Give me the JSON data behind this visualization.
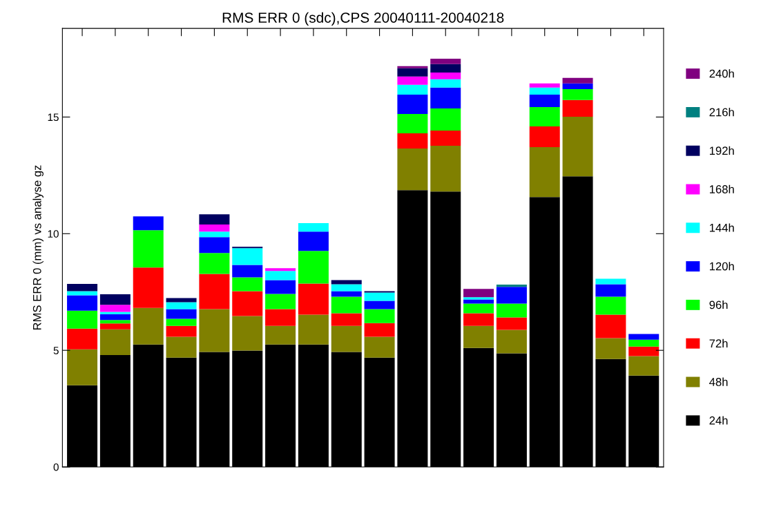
{
  "chart_data": {
    "type": "bar",
    "stacked": true,
    "title": "RMS ERR 0 (sdc),CPS 20040111-20040218",
    "ylabel": "RMS ERR 0 (mm) vs analyse gz",
    "categories": [
      null,
      null,
      null,
      null,
      null,
      null,
      null,
      null,
      null,
      null,
      null,
      null,
      null,
      null,
      null,
      null,
      null,
      null
    ],
    "ylim": [
      0,
      18.8
    ],
    "yticks": [
      0,
      5,
      10,
      15
    ],
    "grid": false,
    "legend": "right",
    "series": [
      {
        "name": "24h",
        "color": "#000000",
        "values": [
          3.5,
          4.8,
          5.25,
          4.69,
          4.93,
          4.99,
          5.25,
          5.25,
          4.93,
          4.69,
          11.87,
          11.81,
          5.1,
          4.87,
          11.57,
          12.46,
          4.63,
          3.92
        ]
      },
      {
        "name": "48h",
        "color": "#808000",
        "values": [
          1.54,
          1.1,
          1.57,
          0.89,
          1.84,
          1.48,
          0.8,
          1.28,
          1.12,
          0.89,
          1.78,
          1.96,
          0.95,
          1.01,
          2.14,
          2.55,
          0.89,
          0.83
        ]
      },
      {
        "name": "72h",
        "color": "#ff0000",
        "values": [
          0.89,
          0.25,
          1.73,
          0.47,
          1.51,
          1.07,
          0.72,
          1.33,
          0.54,
          0.59,
          0.65,
          0.65,
          0.54,
          0.53,
          0.89,
          0.72,
          1.01,
          0.41
        ]
      },
      {
        "name": "96h",
        "color": "#00ff00",
        "values": [
          0.77,
          0.15,
          1.6,
          0.3,
          0.89,
          0.59,
          0.65,
          1.4,
          0.71,
          0.6,
          0.83,
          0.95,
          0.41,
          0.59,
          0.83,
          0.47,
          0.77,
          0.3
        ]
      },
      {
        "name": "120h",
        "color": "#0000ff",
        "values": [
          0.66,
          0.25,
          0.59,
          0.42,
          0.68,
          0.53,
          0.59,
          0.83,
          0.24,
          0.35,
          0.83,
          0.89,
          0.18,
          0.72,
          0.53,
          0.24,
          0.53,
          0.24
        ]
      },
      {
        "name": "144h",
        "color": "#00ffff",
        "values": [
          0.18,
          0.1,
          0,
          0.29,
          0.24,
          0.72,
          0.39,
          0.36,
          0.29,
          0.36,
          0.42,
          0.36,
          0.1,
          0,
          0.3,
          0,
          0.24,
          0
        ]
      },
      {
        "name": "168h",
        "color": "#ff00ff",
        "values": [
          0,
          0.3,
          0,
          0,
          0.3,
          0,
          0.12,
          0,
          0,
          0,
          0.36,
          0.29,
          0,
          0,
          0.18,
          0,
          0,
          0
        ]
      },
      {
        "name": "192h",
        "color": "#000060",
        "values": [
          0.31,
          0.45,
          0,
          0.18,
          0.44,
          0.06,
          0,
          0,
          0.18,
          0.06,
          0.35,
          0.36,
          0,
          0,
          0,
          0,
          0,
          0
        ]
      },
      {
        "name": "216h",
        "color": "#008080",
        "values": [
          0,
          0,
          0,
          0,
          0,
          0,
          0,
          0,
          0,
          0,
          0,
          0,
          0,
          0.1,
          0,
          0,
          0,
          0
        ]
      },
      {
        "name": "240h",
        "color": "#800080",
        "values": [
          0,
          0,
          0,
          0,
          0,
          0,
          0,
          0,
          0,
          0,
          0.09,
          0.23,
          0.35,
          0,
          0,
          0.24,
          0,
          0
        ]
      }
    ]
  }
}
